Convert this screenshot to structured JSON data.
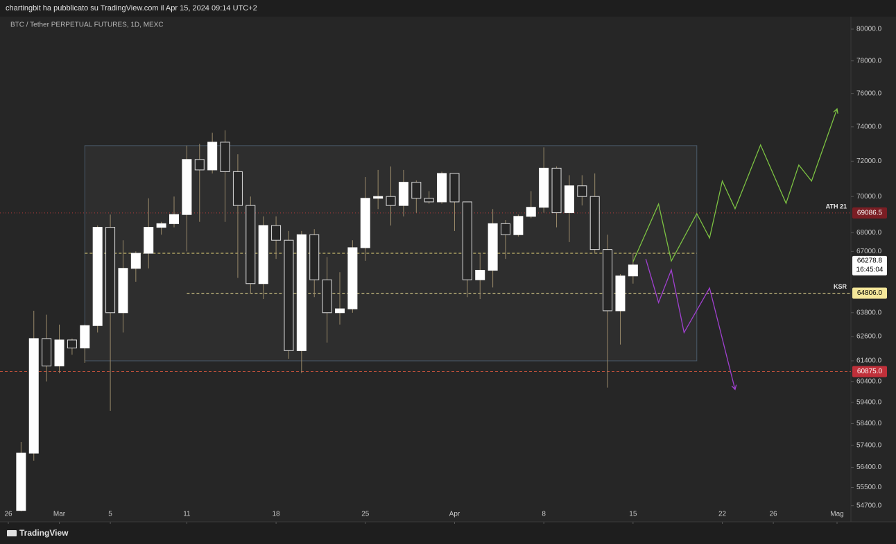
{
  "header": "chartingbit ha pubblicato su TradingView.com il Apr 15, 2024 09:14 UTC+2",
  "footer": "TradingView",
  "chart_data": {
    "type": "candlestick",
    "title": "BTC / Tether PERPETUAL FUTURES, 1D, MEXC",
    "up_color": "#ffffff",
    "down_color": "#262626",
    "border_color": "#dddddd",
    "wick_color": "#9a8a6a",
    "log_scale": true,
    "dates": [
      "2024-02-27",
      "2024-02-28",
      "2024-02-29",
      "2024-03-01",
      "2024-03-02",
      "2024-03-03",
      "2024-03-04",
      "2024-03-05",
      "2024-03-06",
      "2024-03-07",
      "2024-03-08",
      "2024-03-09",
      "2024-03-10",
      "2024-03-11",
      "2024-03-12",
      "2024-03-13",
      "2024-03-14",
      "2024-03-15",
      "2024-03-16",
      "2024-03-17",
      "2024-03-18",
      "2024-03-19",
      "2024-03-20",
      "2024-03-21",
      "2024-03-22",
      "2024-03-23",
      "2024-03-24",
      "2024-03-25",
      "2024-03-26",
      "2024-03-27",
      "2024-03-28",
      "2024-03-29",
      "2024-03-30",
      "2024-03-31",
      "2024-04-01",
      "2024-04-02",
      "2024-04-03",
      "2024-04-04",
      "2024-04-05",
      "2024-04-06",
      "2024-04-07",
      "2024-04-08",
      "2024-04-09",
      "2024-04-10",
      "2024-04-11",
      "2024-04-12",
      "2024-04-13",
      "2024-04-14",
      "2024-04-15"
    ],
    "open": [
      54490,
      57040,
      62500,
      61150,
      62430,
      62030,
      63150,
      68300,
      63800,
      66100,
      66900,
      68300,
      68500,
      69000,
      72100,
      71500,
      73100,
      71400,
      69500,
      65300,
      68400,
      67600,
      61900,
      67900,
      65500,
      63800,
      64000,
      67200,
      69900,
      70000,
      69500,
      70800,
      69900,
      69700,
      71300,
      69700,
      65500,
      66000,
      68500,
      67900,
      68900,
      69400,
      71600,
      69100,
      70600,
      70000,
      67100,
      63900,
      65700
    ],
    "high": [
      57550,
      63900,
      63700,
      63200,
      62500,
      63200,
      68400,
      69000,
      67600,
      67000,
      69900,
      68600,
      70000,
      72900,
      73000,
      73650,
      73800,
      72400,
      70000,
      68900,
      68900,
      68100,
      68100,
      68200,
      66700,
      65900,
      67600,
      71100,
      71500,
      71700,
      71500,
      70900,
      70300,
      71400,
      71300,
      69700,
      66900,
      69300,
      68700,
      69000,
      70300,
      72800,
      71700,
      71200,
      71200,
      71300,
      67900,
      65800,
      66900
    ],
    "low": [
      54450,
      56700,
      60400,
      60800,
      61700,
      61300,
      62800,
      59000,
      62800,
      65400,
      66100,
      67900,
      68300,
      67000,
      68600,
      71300,
      68600,
      65600,
      64800,
      64500,
      66600,
      61500,
      60800,
      64600,
      62300,
      63200,
      63800,
      66500,
      69300,
      68400,
      68900,
      69100,
      69600,
      69600,
      68100,
      64600,
      64500,
      65100,
      66600,
      67800,
      68800,
      69100,
      68300,
      67500,
      69500,
      66900,
      60100,
      62200,
      65300
    ],
    "close": [
      57040,
      62500,
      61150,
      62430,
      62030,
      63150,
      68300,
      63800,
      66100,
      66900,
      68300,
      68500,
      69000,
      72100,
      71500,
      73100,
      71400,
      69500,
      65300,
      68400,
      67600,
      61900,
      67900,
      65500,
      63800,
      64000,
      67200,
      69900,
      70000,
      69500,
      70800,
      69900,
      69700,
      71300,
      69700,
      65500,
      66000,
      68500,
      67900,
      68900,
      69400,
      71600,
      69100,
      70600,
      70000,
      67100,
      63900,
      65700,
      66278.8
    ],
    "xlim": [
      "2024-02-26",
      "2024-05-01"
    ],
    "xticks": [
      {
        "value": "2024-02-26",
        "label": "26"
      },
      {
        "value": "2024-03-01",
        "label": "Mar"
      },
      {
        "value": "2024-03-05",
        "label": "5"
      },
      {
        "value": "2024-03-11",
        "label": "11"
      },
      {
        "value": "2024-03-18",
        "label": "18"
      },
      {
        "value": "2024-03-25",
        "label": "25"
      },
      {
        "value": "2024-04-01",
        "label": "Apr"
      },
      {
        "value": "2024-04-08",
        "label": "8"
      },
      {
        "value": "2024-04-15",
        "label": "15"
      },
      {
        "value": "2024-04-22",
        "label": "22"
      },
      {
        "value": "2024-04-26",
        "label": "26"
      },
      {
        "value": "2024-05-01",
        "label": "Mag"
      }
    ],
    "ylim": [
      54000,
      80800
    ],
    "yticks": [
      {
        "value": 80000,
        "label": "80000.0"
      },
      {
        "value": 78000,
        "label": "78000.0"
      },
      {
        "value": 76000,
        "label": "76000.0"
      },
      {
        "value": 74000,
        "label": "74000.0"
      },
      {
        "value": 72000,
        "label": "72000.0"
      },
      {
        "value": 70000,
        "label": "70000.0"
      },
      {
        "value": 68000,
        "label": "68000.0"
      },
      {
        "value": 67000,
        "label": "67000.0"
      },
      {
        "value": 63800,
        "label": "63800.0"
      },
      {
        "value": 62600,
        "label": "62600.0"
      },
      {
        "value": 61400,
        "label": "61400.0"
      },
      {
        "value": 60400,
        "label": "60400.0"
      },
      {
        "value": 59400,
        "label": "59400.0"
      },
      {
        "value": 58400,
        "label": "58400.0"
      },
      {
        "value": 57400,
        "label": "57400.0"
      },
      {
        "value": 56400,
        "label": "56400.0"
      },
      {
        "value": 55500,
        "label": "55500.0"
      },
      {
        "value": 54700,
        "label": "54700.0"
      }
    ],
    "range_box": {
      "start": "2024-03-03",
      "end": "2024-04-20",
      "top": 72900,
      "bottom": 61400,
      "mid": 66900
    },
    "levels": [
      {
        "label": "ATH 21",
        "value": 69086.5,
        "value_label": "69086.5",
        "color": "#b23a3a",
        "box": "#7a1e24",
        "text": "#ffffff",
        "dash": "1 3"
      },
      {
        "label": "KSR",
        "value": 64806.0,
        "value_label": "64806.0",
        "color": "#f5e79a",
        "box": "#f5e79a",
        "text": "#000000",
        "dash": "4 3",
        "start": "2024-03-11"
      },
      {
        "value": 60875.0,
        "value_label": "60875.0",
        "color": "#c0503a",
        "box": "#c0303a",
        "text": "#ffffff",
        "dash": "4 3"
      }
    ],
    "current_price": 66278.8,
    "countdown": "16:45:04",
    "projections": [
      {
        "color": "#7cc242",
        "dates": [
          "2024-04-15",
          "2024-04-17",
          "2024-04-18",
          "2024-04-20",
          "2024-04-21",
          "2024-04-22",
          "2024-04-23",
          "2024-04-25",
          "2024-04-27",
          "2024-04-28",
          "2024-04-29",
          "2024-05-01"
        ],
        "prices": [
          66450,
          69580,
          66490,
          69050,
          67720,
          70870,
          69320,
          72940,
          69620,
          71780,
          70870,
          75070
        ]
      },
      {
        "color": "#a040d0",
        "dates": [
          "2024-04-16",
          "2024-04-17",
          "2024-04-18",
          "2024-04-19",
          "2024-04-21",
          "2024-04-23"
        ],
        "prices": [
          66600,
          64320,
          66020,
          62800,
          65070,
          60010
        ]
      }
    ]
  }
}
